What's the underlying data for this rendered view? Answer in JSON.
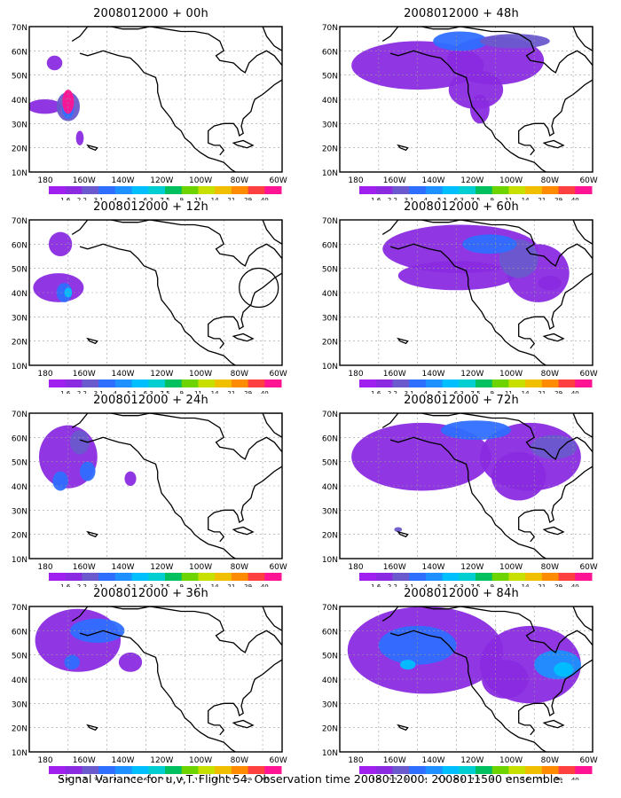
{
  "caption": "Signal Variance for u,v,T. Flight 54. Observation time 2008012000. 2008011500 ensemble.",
  "lat_labels": [
    "70N",
    "60N",
    "50N",
    "40N",
    "30N",
    "20N",
    "10N"
  ],
  "lon_labels": [
    "180",
    "160W",
    "140W",
    "120W",
    "100W",
    "80W",
    "60W"
  ],
  "colorbar": {
    "labels": [
      "1.6",
      "2.2",
      "3.1",
      "4",
      "5.1",
      "6.3",
      "7.5",
      "9",
      "11",
      "14",
      "21",
      "29",
      "40"
    ],
    "colors": [
      "#a020f0",
      "#8a2be2",
      "#6a5acd",
      "#2f6fff",
      "#1e90ff",
      "#00bfff",
      "#00ced1",
      "#00c060",
      "#6dd400",
      "#c8e000",
      "#f0c000",
      "#ff8c00",
      "#ff4040",
      "#ff1493"
    ]
  },
  "panels": [
    {
      "title": "2008012000 + 00h"
    },
    {
      "title": "2008012000 + 48h"
    },
    {
      "title": "2008012000 + 12h"
    },
    {
      "title": "2008012000 + 60h"
    },
    {
      "title": "2008012000 + 24h"
    },
    {
      "title": "2008012000 + 72h"
    },
    {
      "title": "2008012000 + 36h"
    },
    {
      "title": "2008012000 + 84h"
    }
  ]
}
